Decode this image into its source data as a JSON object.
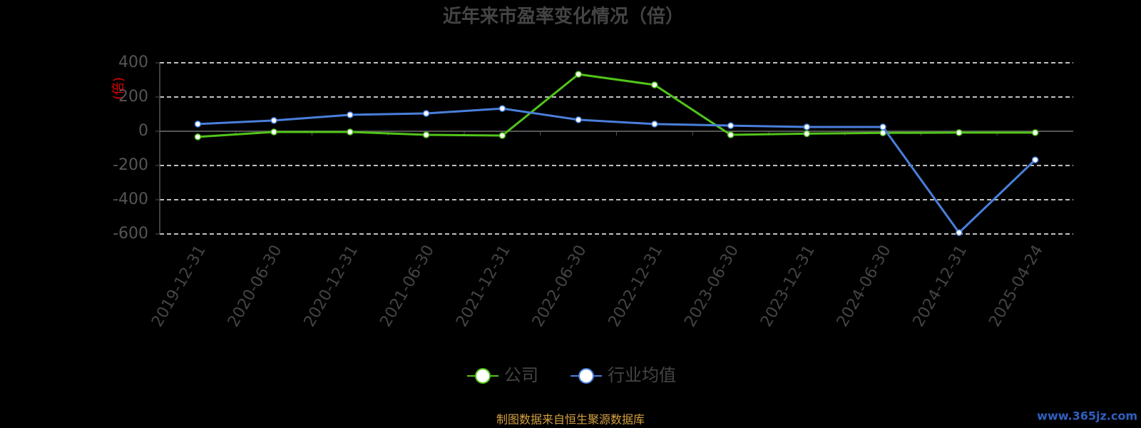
{
  "chart_data": {
    "type": "line",
    "title": "近年来市盈率变化情况（倍）",
    "y_label": "(倍)",
    "categories": [
      "2019-12-31",
      "2020-06-30",
      "2020-12-31",
      "2021-06-30",
      "2021-12-31",
      "2022-06-30",
      "2022-12-31",
      "2023-06-30",
      "2023-12-31",
      "2024-06-30",
      "2024-12-31",
      "2025-04-24"
    ],
    "series": [
      {
        "name": "公司",
        "color": "#52c41a",
        "values": [
          -33,
          -4,
          -4,
          -21,
          -25,
          333,
          271,
          -21,
          -14.06,
          -9.6,
          -8,
          -8
        ]
      },
      {
        "name": "行业均值",
        "color": "#4a7fdc",
        "values": [
          42,
          63,
          96,
          104,
          133,
          67,
          42,
          33,
          25,
          25,
          -592,
          -167
        ]
      }
    ],
    "ylim": [
      -600,
      400
    ],
    "yticks": [
      -600,
      -400,
      -200,
      0,
      200,
      400
    ],
    "grid": true,
    "legend": "bottom",
    "source": "制图数据来自恒生聚源数据库",
    "watermark": "www.365jz.com"
  }
}
